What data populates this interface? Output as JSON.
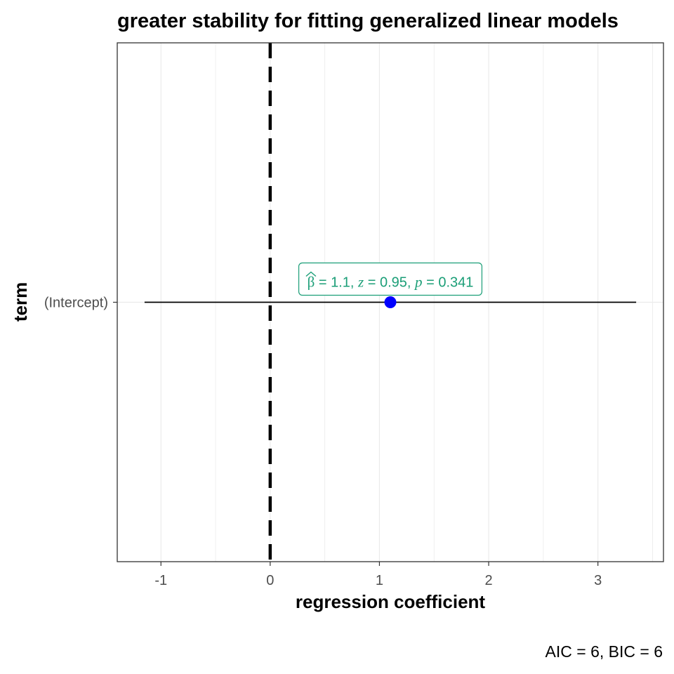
{
  "chart_data": {
    "type": "scatter",
    "title": "greater stability for fitting generalized linear models",
    "xlabel": "regression coefficient",
    "ylabel": "term",
    "xlim": [
      -1.4,
      3.6
    ],
    "xticks": [
      -1,
      0,
      1,
      2,
      3
    ],
    "xtick_labels": [
      "-1",
      "0",
      "1",
      "2",
      "3"
    ],
    "categories": [
      "(Intercept)"
    ],
    "points": [
      {
        "term": "(Intercept)",
        "estimate": 1.1,
        "conf_low": -1.15,
        "conf_high": 3.35
      }
    ],
    "reference_line": {
      "x": 0,
      "style": "dashed"
    },
    "label": {
      "beta_symbol": "β",
      "beta_value": "1.1",
      "z_symbol": "z",
      "z_value": "0.95",
      "p_symbol": "p",
      "p_value": "0.341"
    },
    "caption": "AIC = 6, BIC = 6",
    "grid": true,
    "colors": {
      "point": "#0000ff",
      "label": "#1b9e77",
      "errorbar": "#000000",
      "panel_border": "#333333",
      "grid": "#ebebeb"
    }
  }
}
